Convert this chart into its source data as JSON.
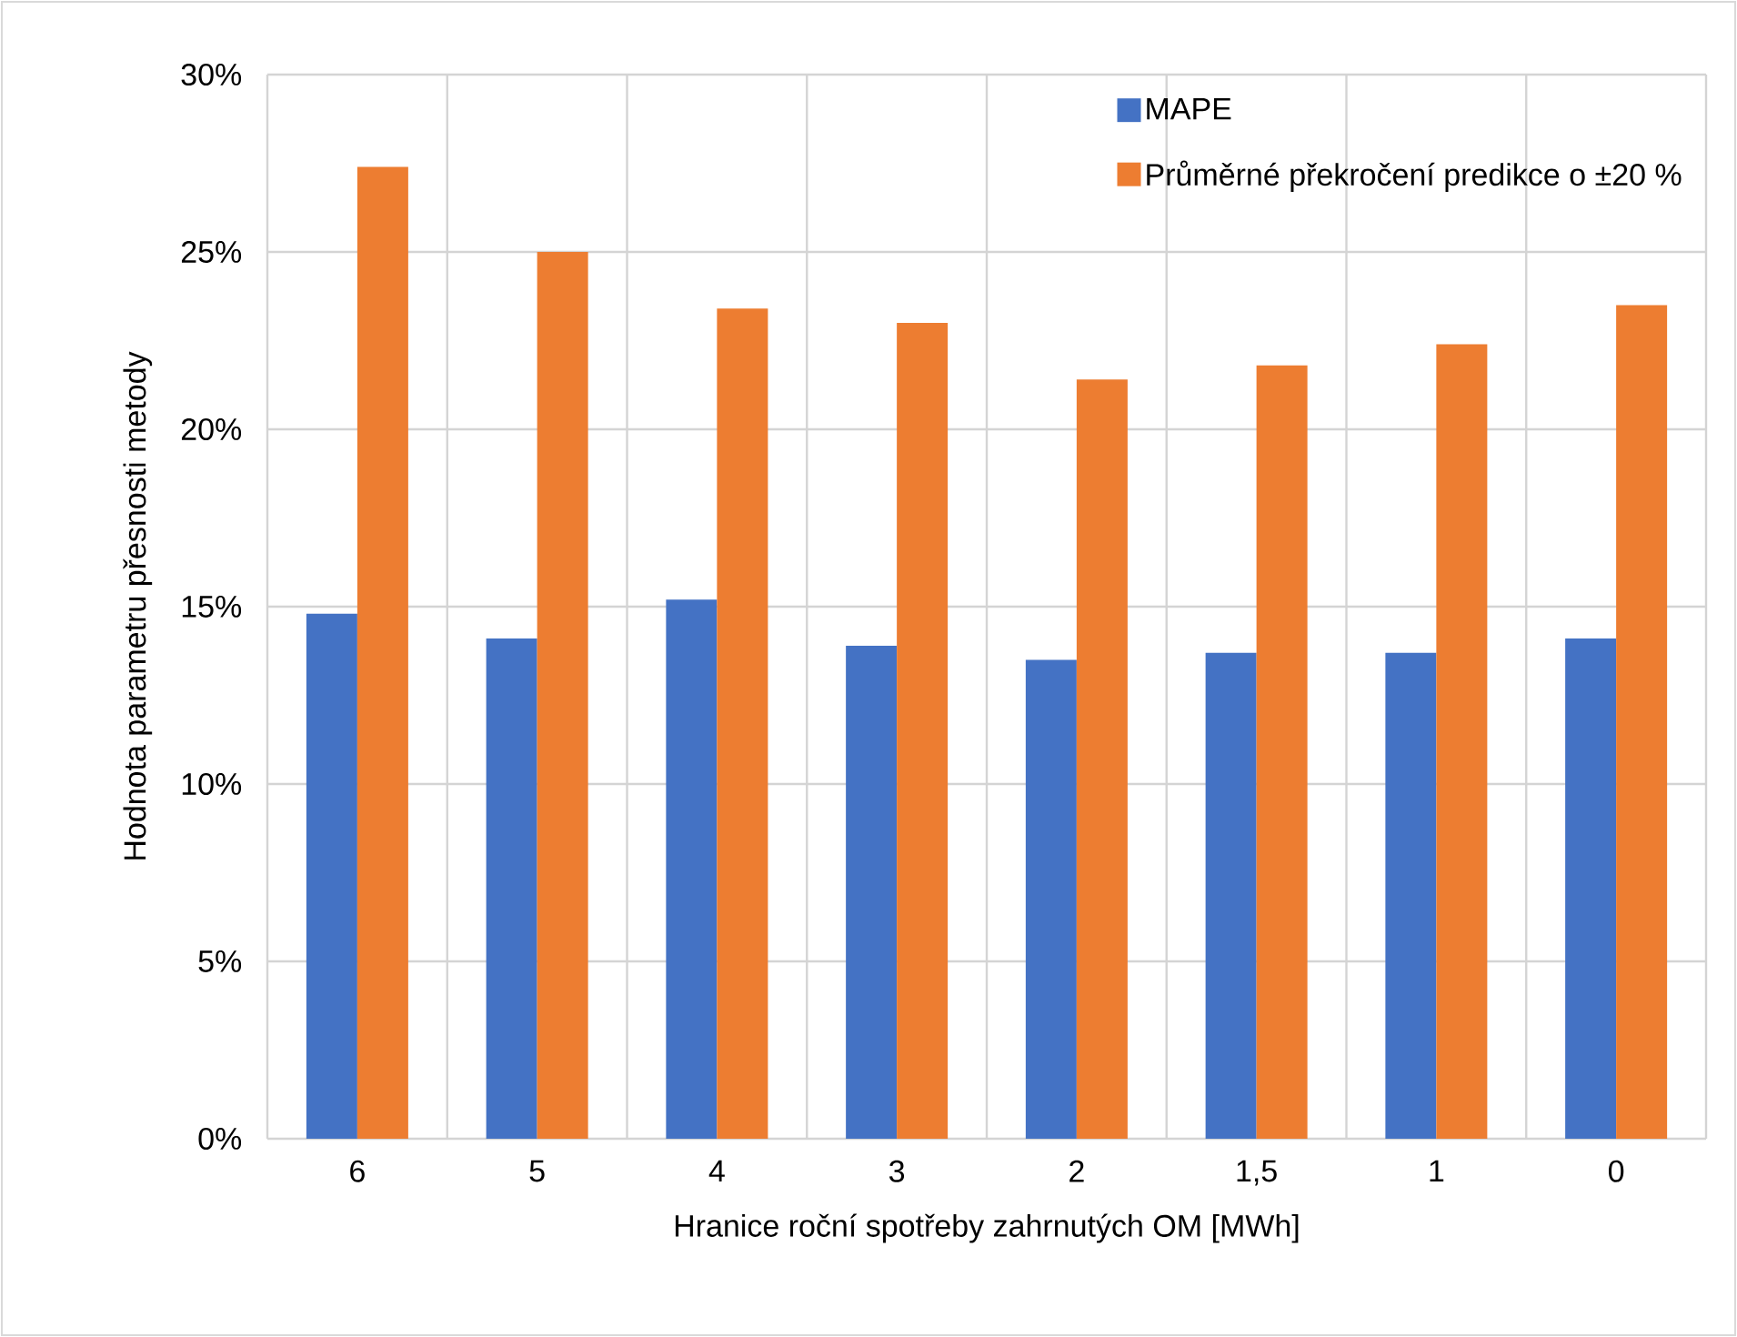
{
  "chart_data": {
    "type": "bar",
    "xlabel": "Hranice roční spotřeby zahrnutých OM [MWh]",
    "ylabel": "Hodnota parametru přesnosti metody",
    "categories": [
      "6",
      "5",
      "4",
      "3",
      "2",
      "1,5",
      "1",
      "0"
    ],
    "series": [
      {
        "name": "MAPE",
        "color": "#4472c4",
        "values": [
          14.8,
          14.1,
          15.2,
          13.9,
          13.5,
          13.7,
          13.7,
          14.1
        ]
      },
      {
        "name": "Průměrné překročení predikce o ±20 %",
        "color": "#ed7d31",
        "values": [
          27.4,
          25.0,
          23.4,
          23.0,
          21.4,
          21.8,
          22.4,
          23.5
        ]
      }
    ],
    "ylim": [
      0,
      30
    ],
    "yticks": [
      {
        "value": 0,
        "label": "0%"
      },
      {
        "value": 5,
        "label": "5%"
      },
      {
        "value": 10,
        "label": "10%"
      },
      {
        "value": 15,
        "label": "15%"
      },
      {
        "value": 20,
        "label": "20%"
      },
      {
        "value": 25,
        "label": "25%"
      },
      {
        "value": 30,
        "label": "30%"
      }
    ],
    "grid": true,
    "legend": "top right"
  }
}
